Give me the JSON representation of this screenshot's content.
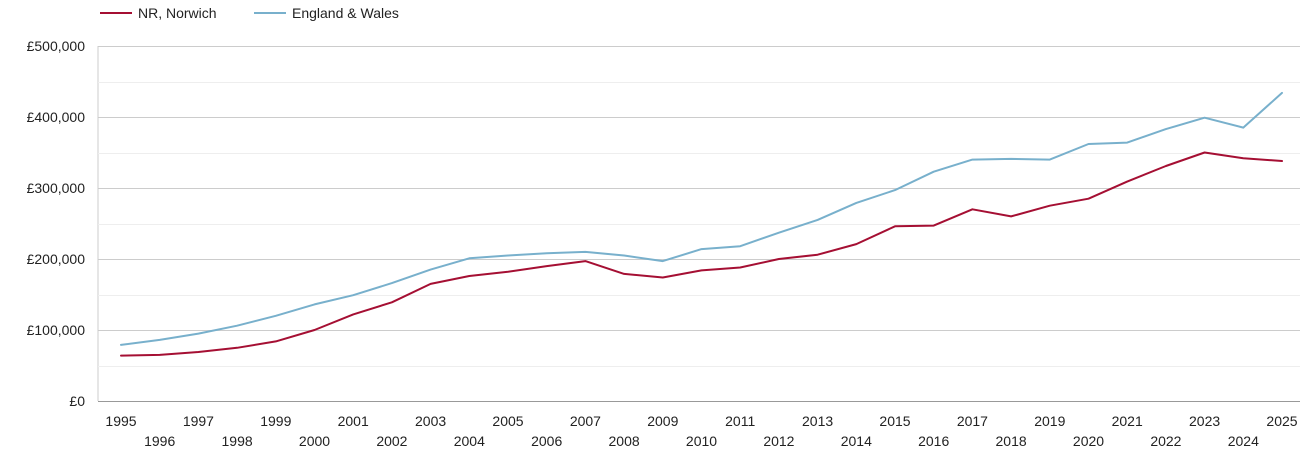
{
  "chart_data": {
    "type": "line",
    "title": "",
    "xlabel": "",
    "ylabel": "",
    "x": [
      1995,
      1996,
      1997,
      1998,
      1999,
      2000,
      2001,
      2002,
      2003,
      2004,
      2005,
      2006,
      2007,
      2008,
      2009,
      2010,
      2011,
      2012,
      2013,
      2014,
      2015,
      2016,
      2017,
      2018,
      2019,
      2020,
      2021,
      2022,
      2023,
      2024,
      2025
    ],
    "ylim": [
      0,
      500000
    ],
    "y_ticks": [
      {
        "value": 0,
        "label": "£0"
      },
      {
        "value": 100000,
        "label": "£100,000"
      },
      {
        "value": 200000,
        "label": "£200,000"
      },
      {
        "value": 300000,
        "label": "£300,000"
      },
      {
        "value": 400000,
        "label": "£400,000"
      },
      {
        "value": 500000,
        "label": "£500,000"
      }
    ],
    "grid": true,
    "legend": "top-left",
    "series": [
      {
        "name": "NR, Norwich",
        "color": "#a50f33",
        "values": [
          64000,
          65000,
          69000,
          75000,
          84000,
          100000,
          122000,
          139000,
          165000,
          176000,
          182000,
          190000,
          197000,
          179000,
          174000,
          184000,
          188000,
          200000,
          206000,
          221000,
          246000,
          247000,
          270000,
          260000,
          275000,
          285000,
          309000,
          331000,
          350000,
          342000,
          338000
        ]
      },
      {
        "name": "England & Wales",
        "color": "#78b0cc",
        "values": [
          79000,
          86000,
          95000,
          106000,
          120000,
          136000,
          149000,
          166000,
          185000,
          201000,
          205000,
          208000,
          210000,
          205000,
          197000,
          214000,
          218000,
          237000,
          255000,
          279000,
          297000,
          323000,
          340000,
          341000,
          340000,
          362000,
          364000,
          383000,
          399000,
          385000,
          434000
        ]
      }
    ]
  }
}
